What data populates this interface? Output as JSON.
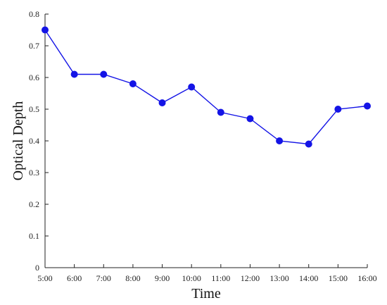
{
  "chart_data": {
    "type": "line",
    "title": "",
    "xlabel": "Time",
    "ylabel": "Optical Depth",
    "categories": [
      "5:00",
      "6:00",
      "7:00",
      "8:00",
      "9:00",
      "10:00",
      "11:00",
      "12:00",
      "13:00",
      "14:00",
      "15:00",
      "16:00"
    ],
    "series": [
      {
        "values": [
          0.75,
          0.61,
          0.61,
          0.58,
          0.52,
          0.57,
          0.49,
          0.47,
          0.4,
          0.39,
          0.5,
          0.51
        ]
      }
    ],
    "ylim": [
      0,
      0.8
    ],
    "yticks": [
      0,
      0.1,
      0.2,
      0.3,
      0.4,
      0.5,
      0.6,
      0.7,
      0.8
    ],
    "ytick_labels": [
      "0",
      "0.1",
      "0.2",
      "0.3",
      "0.4",
      "0.5",
      "0.6",
      "0.7",
      "0.8"
    ],
    "grid": false,
    "colors": {
      "series": "#1414e6",
      "axis": "#222222"
    }
  }
}
